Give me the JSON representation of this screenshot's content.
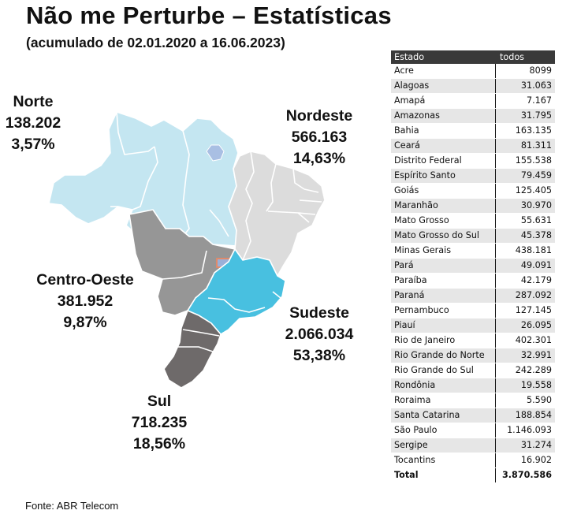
{
  "header": {
    "title": "Não me Perturbe – Estatísticas",
    "subtitle": "(acumulado de 02.01.2020 a 16.06.2023)"
  },
  "colors": {
    "norte": "#c4e6f1",
    "nordeste": "#dcdcdc",
    "centro_oeste": "#969696",
    "sudeste": "#48c0e0",
    "sul": "#6e6a6a",
    "df_fill": "#9ab0d8",
    "df_border": "#e08a6a",
    "para_lake": "#a9bfe3",
    "table_header_bg": "#3a3a3a"
  },
  "regions": [
    {
      "key": "norte",
      "name": "Norte",
      "value": "138.202",
      "percent": "3,57%"
    },
    {
      "key": "nordeste",
      "name": "Nordeste",
      "value": "566.163",
      "percent": "14,63%"
    },
    {
      "key": "centro_oeste",
      "name": "Centro-Oeste",
      "value": "381.952",
      "percent": "9,87%"
    },
    {
      "key": "sudeste",
      "name": "Sudeste",
      "value": "2.066.034",
      "percent": "53,38%"
    },
    {
      "key": "sul",
      "name": "Sul",
      "value": "718.235",
      "percent": "18,56%"
    }
  ],
  "table": {
    "columns": [
      "Estado",
      "todos"
    ],
    "rows": [
      {
        "estado": "Acre",
        "todos": "8099"
      },
      {
        "estado": "Alagoas",
        "todos": "31.063"
      },
      {
        "estado": "Amapá",
        "todos": "7.167"
      },
      {
        "estado": "Amazonas",
        "todos": "31.795"
      },
      {
        "estado": "Bahia",
        "todos": "163.135"
      },
      {
        "estado": "Ceará",
        "todos": "81.311"
      },
      {
        "estado": "Distrito Federal",
        "todos": "155.538"
      },
      {
        "estado": "Espírito Santo",
        "todos": "79.459"
      },
      {
        "estado": "Goiás",
        "todos": "125.405"
      },
      {
        "estado": "Maranhão",
        "todos": "30.970"
      },
      {
        "estado": "Mato Grosso",
        "todos": "55.631"
      },
      {
        "estado": "Mato Grosso do Sul",
        "todos": "45.378"
      },
      {
        "estado": "Minas Gerais",
        "todos": "438.181"
      },
      {
        "estado": "Pará",
        "todos": "49.091"
      },
      {
        "estado": "Paraíba",
        "todos": "42.179"
      },
      {
        "estado": "Paraná",
        "todos": "287.092"
      },
      {
        "estado": "Pernambuco",
        "todos": "127.145"
      },
      {
        "estado": "Piauí",
        "todos": "26.095"
      },
      {
        "estado": "Rio de Janeiro",
        "todos": "402.301"
      },
      {
        "estado": "Rio Grande do Norte",
        "todos": "32.991"
      },
      {
        "estado": "Rio Grande do Sul",
        "todos": "242.289"
      },
      {
        "estado": "Rondônia",
        "todos": "19.558"
      },
      {
        "estado": "Roraima",
        "todos": "5.590"
      },
      {
        "estado": "Santa Catarina",
        "todos": "188.854"
      },
      {
        "estado": "São Paulo",
        "todos": "1.146.093"
      },
      {
        "estado": "Sergipe",
        "todos": "31.274"
      },
      {
        "estado": "Tocantins",
        "todos": "16.902"
      }
    ],
    "total_label": "Total",
    "total_value": "3.870.586"
  },
  "footer": {
    "source": "Fonte: ABR Telecom"
  }
}
